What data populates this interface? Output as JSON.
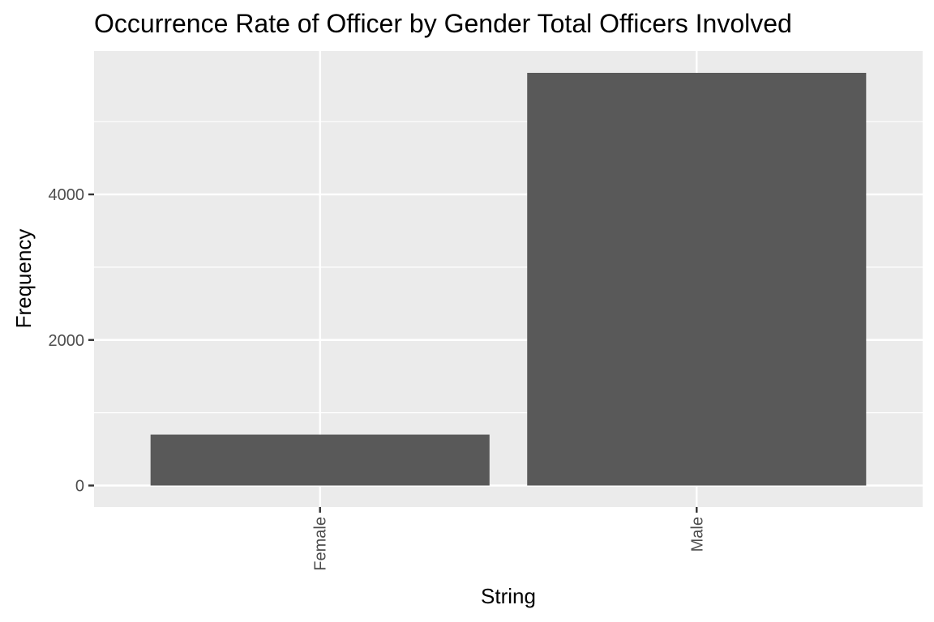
{
  "colors": {
    "panel": "#ebebeb",
    "grid": "#ffffff",
    "bar": "#595959",
    "tick": "#333333"
  },
  "chart_data": {
    "type": "bar",
    "title": "Occurrence Rate of Officer by Gender Total Officers Involved",
    "xlabel": "String",
    "ylabel": "Frequency",
    "categories": [
      "Female",
      "Male"
    ],
    "values": [
      700,
      5670
    ],
    "ylim": [
      -295,
      5970
    ],
    "yticks": [
      0,
      2000,
      4000
    ],
    "yticks_minor": [
      1000,
      3000,
      5000
    ],
    "yticklabels": [
      "0",
      "2000",
      "4000"
    ],
    "grid": true,
    "legend": "none"
  }
}
